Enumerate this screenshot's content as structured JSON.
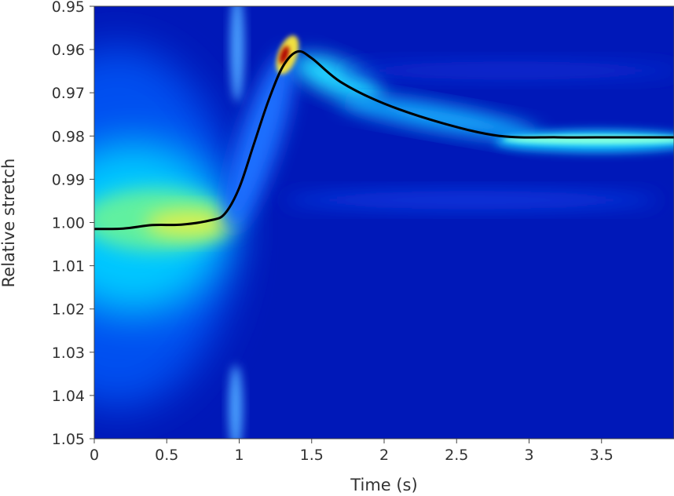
{
  "chart_data": {
    "type": "heatmap",
    "title": "",
    "xlabel": "Time (s)",
    "ylabel": "Relative stretch",
    "xlim": [
      0,
      4.0
    ],
    "ylim": [
      0.95,
      1.05
    ],
    "y_inverted": true,
    "grid": false,
    "legend": "none",
    "colormap": "jet",
    "x_ticks": [
      {
        "value": 0,
        "label": "0"
      },
      {
        "value": 0.5,
        "label": "0.5"
      },
      {
        "value": 1,
        "label": "1"
      },
      {
        "value": 1.5,
        "label": "1.5"
      },
      {
        "value": 2,
        "label": "2"
      },
      {
        "value": 2.5,
        "label": "2.5"
      },
      {
        "value": 3,
        "label": "3"
      },
      {
        "value": 3.5,
        "label": "3.5"
      }
    ],
    "y_ticks": [
      {
        "value": 0.95,
        "label": "0.95"
      },
      {
        "value": 0.96,
        "label": "0.96"
      },
      {
        "value": 0.97,
        "label": "0.97"
      },
      {
        "value": 0.98,
        "label": "0.98"
      },
      {
        "value": 0.99,
        "label": "0.99"
      },
      {
        "value": 1.0,
        "label": "1.00"
      },
      {
        "value": 1.01,
        "label": "1.01"
      },
      {
        "value": 1.02,
        "label": "1.02"
      },
      {
        "value": 1.03,
        "label": "1.03"
      },
      {
        "value": 1.04,
        "label": "1.04"
      },
      {
        "value": 1.05,
        "label": "1.05"
      }
    ],
    "picked_path": {
      "color": "#000000",
      "x": [
        0,
        0.2,
        0.4,
        0.6,
        0.8,
        0.9,
        1.0,
        1.1,
        1.2,
        1.3,
        1.4,
        1.5,
        1.7,
        2.0,
        2.4,
        2.8,
        3.2,
        3.6,
        4.0
      ],
      "y": [
        1.0015,
        1.0014,
        1.0006,
        1.0005,
        0.9995,
        0.998,
        0.992,
        0.982,
        0.972,
        0.964,
        0.9605,
        0.962,
        0.9675,
        0.9725,
        0.977,
        0.98,
        0.9803,
        0.9803,
        0.9803
      ]
    }
  }
}
